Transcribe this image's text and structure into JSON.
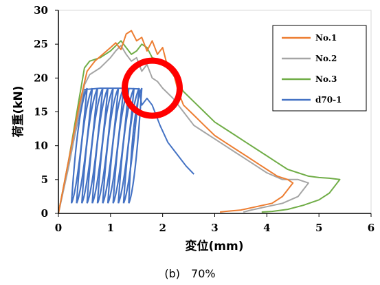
{
  "caption": "(b)　70%",
  "chart_data": {
    "type": "line",
    "title": "",
    "xlabel": "変位(mm)",
    "ylabel": "荷重(kN)",
    "xlim": [
      0,
      6
    ],
    "ylim": [
      0,
      30
    ],
    "xticks": [
      "0",
      "1",
      "2",
      "3",
      "4",
      "5",
      "6"
    ],
    "yticks": [
      "0",
      "5",
      "10",
      "15",
      "20",
      "25",
      "30"
    ],
    "grid": false,
    "legend_position": "top-right",
    "series": [
      {
        "name": "No.1",
        "color": "#ED7D31",
        "points": [
          [
            0,
            0
          ],
          [
            0.2,
            8
          ],
          [
            0.4,
            16
          ],
          [
            0.55,
            21
          ],
          [
            0.7,
            22.5
          ],
          [
            0.85,
            23.5
          ],
          [
            1.0,
            24.5
          ],
          [
            1.1,
            25.2
          ],
          [
            1.2,
            24.2
          ],
          [
            1.3,
            26.5
          ],
          [
            1.4,
            27
          ],
          [
            1.5,
            25.5
          ],
          [
            1.6,
            26
          ],
          [
            1.7,
            24
          ],
          [
            1.8,
            25.5
          ],
          [
            1.9,
            23.5
          ],
          [
            2.0,
            24.5
          ],
          [
            2.1,
            21.5
          ],
          [
            2.2,
            21
          ],
          [
            2.3,
            18
          ],
          [
            2.4,
            16
          ],
          [
            2.6,
            14.5
          ],
          [
            2.8,
            13
          ],
          [
            3.0,
            11.5
          ],
          [
            3.2,
            10.5
          ],
          [
            3.4,
            9.5
          ],
          [
            3.6,
            8.5
          ],
          [
            3.8,
            7.5
          ],
          [
            4.0,
            6.5
          ],
          [
            4.2,
            5.5
          ],
          [
            4.4,
            5
          ],
          [
            4.5,
            4.5
          ],
          [
            4.3,
            2.5
          ],
          [
            4.1,
            1.5
          ],
          [
            3.8,
            1.0
          ],
          [
            3.5,
            0.5
          ],
          [
            3.2,
            0.3
          ],
          [
            3.1,
            0.2
          ]
        ]
      },
      {
        "name": "No.2",
        "color": "#A5A5A5",
        "points": [
          [
            0,
            0
          ],
          [
            0.2,
            7
          ],
          [
            0.4,
            15
          ],
          [
            0.5,
            19
          ],
          [
            0.6,
            20.5
          ],
          [
            0.8,
            21.5
          ],
          [
            1.0,
            23
          ],
          [
            1.1,
            24
          ],
          [
            1.2,
            24.8
          ],
          [
            1.3,
            23.5
          ],
          [
            1.4,
            22.5
          ],
          [
            1.5,
            23
          ],
          [
            1.6,
            21
          ],
          [
            1.7,
            22
          ],
          [
            1.8,
            20
          ],
          [
            1.9,
            19.5
          ],
          [
            2.0,
            18.5
          ],
          [
            2.2,
            17
          ],
          [
            2.4,
            15
          ],
          [
            2.6,
            13
          ],
          [
            2.8,
            12
          ],
          [
            3.0,
            11
          ],
          [
            3.2,
            10
          ],
          [
            3.4,
            9
          ],
          [
            3.6,
            8
          ],
          [
            3.8,
            7
          ],
          [
            4.0,
            6
          ],
          [
            4.3,
            5
          ],
          [
            4.6,
            5
          ],
          [
            4.8,
            4.5
          ],
          [
            4.6,
            2.5
          ],
          [
            4.3,
            1.5
          ],
          [
            4.0,
            1
          ],
          [
            3.7,
            0.5
          ],
          [
            3.55,
            0.2
          ]
        ]
      },
      {
        "name": "No.3",
        "color": "#70AD47",
        "points": [
          [
            0,
            0
          ],
          [
            0.2,
            8
          ],
          [
            0.4,
            17
          ],
          [
            0.5,
            21.5
          ],
          [
            0.6,
            22.5
          ],
          [
            0.8,
            23
          ],
          [
            1.0,
            24
          ],
          [
            1.2,
            25.5
          ],
          [
            1.3,
            24.5
          ],
          [
            1.4,
            23.5
          ],
          [
            1.5,
            24
          ],
          [
            1.6,
            25
          ],
          [
            1.7,
            24.5
          ],
          [
            1.8,
            23
          ],
          [
            2.0,
            22.5
          ],
          [
            2.2,
            20.5
          ],
          [
            2.4,
            18
          ],
          [
            2.6,
            16.5
          ],
          [
            2.8,
            15
          ],
          [
            3.0,
            13.5
          ],
          [
            3.2,
            12.5
          ],
          [
            3.4,
            11.5
          ],
          [
            3.6,
            10.5
          ],
          [
            3.8,
            9.5
          ],
          [
            4.0,
            8.5
          ],
          [
            4.2,
            7.5
          ],
          [
            4.4,
            6.5
          ],
          [
            4.6,
            6
          ],
          [
            4.8,
            5.5
          ],
          [
            5.0,
            5.3
          ],
          [
            5.2,
            5.2
          ],
          [
            5.4,
            5
          ],
          [
            5.2,
            3
          ],
          [
            5.0,
            2
          ],
          [
            4.7,
            1.2
          ],
          [
            4.4,
            0.6
          ],
          [
            4.1,
            0.3
          ],
          [
            3.9,
            0.2
          ]
        ]
      },
      {
        "name": "d70-1",
        "color": "#4472C4",
        "cycles": [
          [
            0.25,
            0.55
          ],
          [
            0.35,
            0.65
          ],
          [
            0.45,
            0.75
          ],
          [
            0.55,
            0.85
          ],
          [
            0.65,
            0.95
          ],
          [
            0.75,
            1.05
          ],
          [
            0.85,
            1.15
          ],
          [
            0.95,
            1.25
          ],
          [
            1.05,
            1.35
          ],
          [
            1.15,
            1.45
          ],
          [
            1.25,
            1.55
          ],
          [
            1.35,
            1.6
          ]
        ],
        "cycle_min_load": 1.5,
        "cycle_max_load": 18.5,
        "points": [
          [
            0,
            0
          ],
          [
            0.5,
            18.3
          ],
          [
            0.8,
            18.5
          ],
          [
            1.2,
            18.5
          ],
          [
            1.55,
            18.4
          ],
          [
            1.6,
            16
          ],
          [
            1.65,
            16.5
          ],
          [
            1.7,
            17
          ],
          [
            1.8,
            16
          ],
          [
            1.95,
            13
          ],
          [
            2.1,
            10.5
          ],
          [
            2.3,
            8.5
          ],
          [
            2.45,
            7
          ],
          [
            2.6,
            5.8
          ]
        ]
      }
    ],
    "annotations": [
      {
        "type": "circle",
        "color": "#FF0000",
        "center_data": [
          1.8,
          18.5
        ]
      }
    ]
  }
}
